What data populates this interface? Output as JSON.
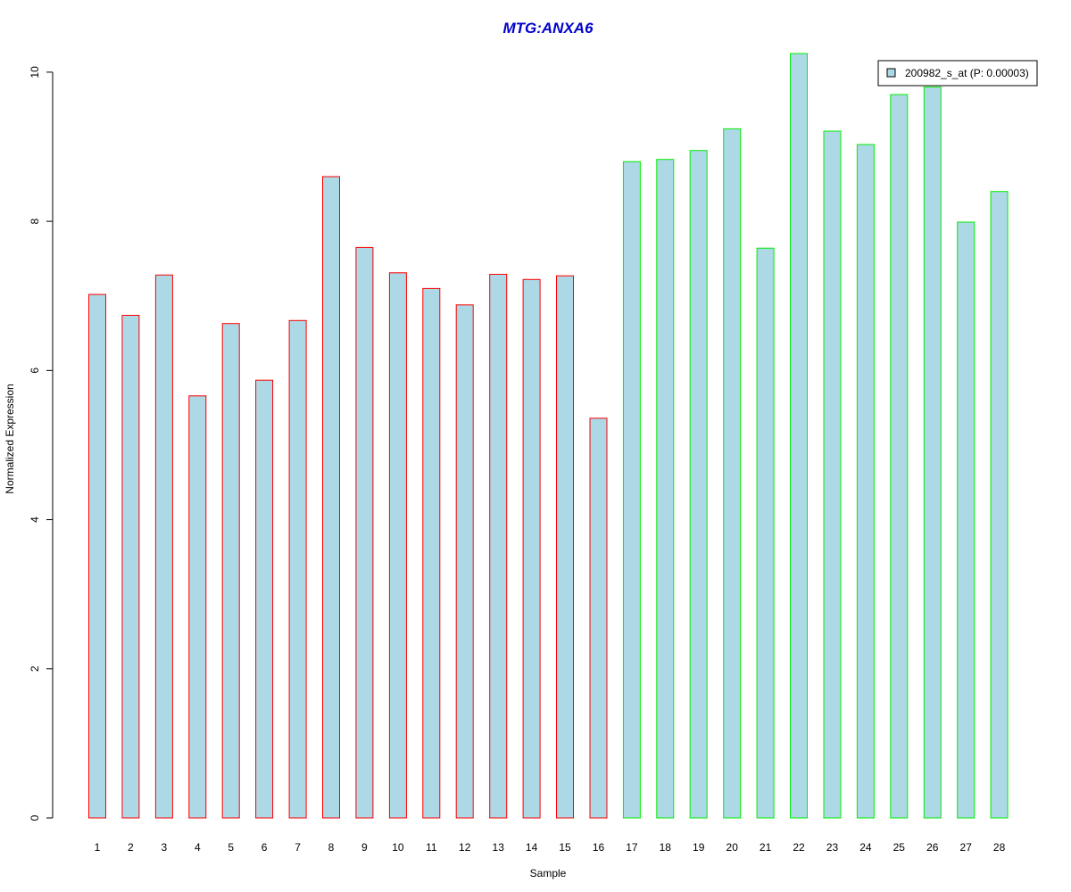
{
  "chart_data": {
    "type": "bar",
    "title": "MTG:ANXA6",
    "title_color": "#0000cc",
    "xlabel": "Sample",
    "ylabel": "Normalized Expression",
    "ylim": [
      0,
      10.25
    ],
    "yticks": [
      0,
      2,
      4,
      6,
      8,
      10
    ],
    "categories": [
      "1",
      "2",
      "3",
      "4",
      "5",
      "6",
      "7",
      "8",
      "9",
      "10",
      "11",
      "12",
      "13",
      "14",
      "15",
      "16",
      "17",
      "18",
      "19",
      "20",
      "21",
      "22",
      "23",
      "24",
      "25",
      "26",
      "27",
      "28"
    ],
    "values": [
      7.02,
      6.74,
      7.28,
      5.66,
      6.63,
      5.87,
      6.67,
      8.6,
      7.65,
      7.31,
      7.1,
      6.88,
      7.29,
      7.22,
      7.27,
      5.36,
      8.8,
      8.83,
      8.95,
      9.24,
      7.64,
      10.25,
      9.21,
      9.03,
      9.7,
      9.8,
      7.99,
      8.4
    ],
    "fill_color": "#add8e6",
    "group_border_colors": [
      "#ff0000",
      "#ff0000",
      "#ff0000",
      "#ff0000",
      "#ff0000",
      "#ff0000",
      "#ff0000",
      "#ff0000",
      "#ff0000",
      "#ff0000",
      "#ff0000",
      "#ff0000",
      "#ff0000",
      "#ff0000",
      "#ff0000",
      "#ff0000",
      "#00ee00",
      "#00ee00",
      "#00ee00",
      "#00ee00",
      "#00ee00",
      "#00ee00",
      "#00ee00",
      "#00ee00",
      "#00ee00",
      "#00ee00",
      "#00ee00",
      "#00ee00"
    ],
    "legend": {
      "label": "200982_s_at (P: 0.00003)",
      "placement": "top-right",
      "swatch_color": "#add8e6"
    },
    "grid": false
  }
}
